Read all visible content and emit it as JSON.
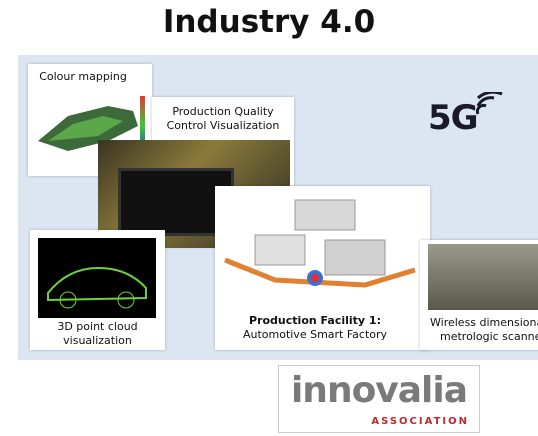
{
  "title": "Industry 4.0",
  "badge": "5G",
  "panels": [
    {
      "caption": [
        "Colour mapping"
      ]
    },
    {
      "caption": [
        "Production Quality",
        "Control Visualization"
      ]
    },
    {
      "caption": [
        "3D point cloud",
        "visualization"
      ]
    },
    {
      "caption": [
        "Production Facility 1:",
        "Automotive Smart Factory"
      ]
    },
    {
      "caption": [
        "Wireless dimensional",
        "metrologic scanner"
      ]
    }
  ],
  "logo": {
    "name": "innovalia",
    "tagline": "ASSOCIATION"
  }
}
